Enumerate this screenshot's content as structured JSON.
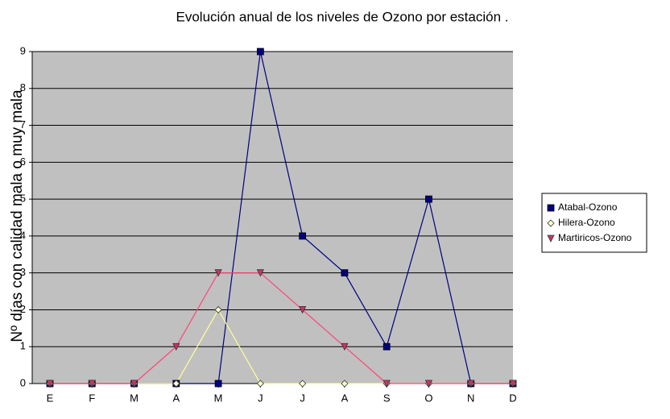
{
  "chart_data": {
    "type": "line",
    "title": "Evolución anual de los niveles de Ozono por estación .",
    "y_label": "Nº días con calidad mala o muy mala",
    "categories": [
      "E",
      "F",
      "M",
      "A",
      "M",
      "J",
      "J",
      "A",
      "S",
      "O",
      "N",
      "D"
    ],
    "series": [
      {
        "name": "Atabal-Ozono",
        "color": "#000080",
        "marker": "square",
        "values": [
          0,
          0,
          0,
          0,
          0,
          9,
          4,
          3,
          1,
          5,
          0,
          0
        ]
      },
      {
        "name": "Hilera-Ozono",
        "color": "#ffff99",
        "marker": "diamond",
        "values": [
          0,
          0,
          0,
          0,
          2,
          0,
          0,
          0,
          0,
          0,
          0,
          0
        ]
      },
      {
        "name": "Martiricos-Ozono",
        "color": "#ff4477",
        "marker": "triangle",
        "values": [
          0,
          0,
          0,
          1,
          3,
          3,
          2,
          1,
          0,
          0,
          0,
          0
        ]
      }
    ],
    "ylim": [
      0,
      9
    ],
    "yticks": [
      0,
      1,
      2,
      3,
      4,
      5,
      6,
      7,
      8,
      9
    ],
    "grid": true,
    "legend": "right"
  }
}
